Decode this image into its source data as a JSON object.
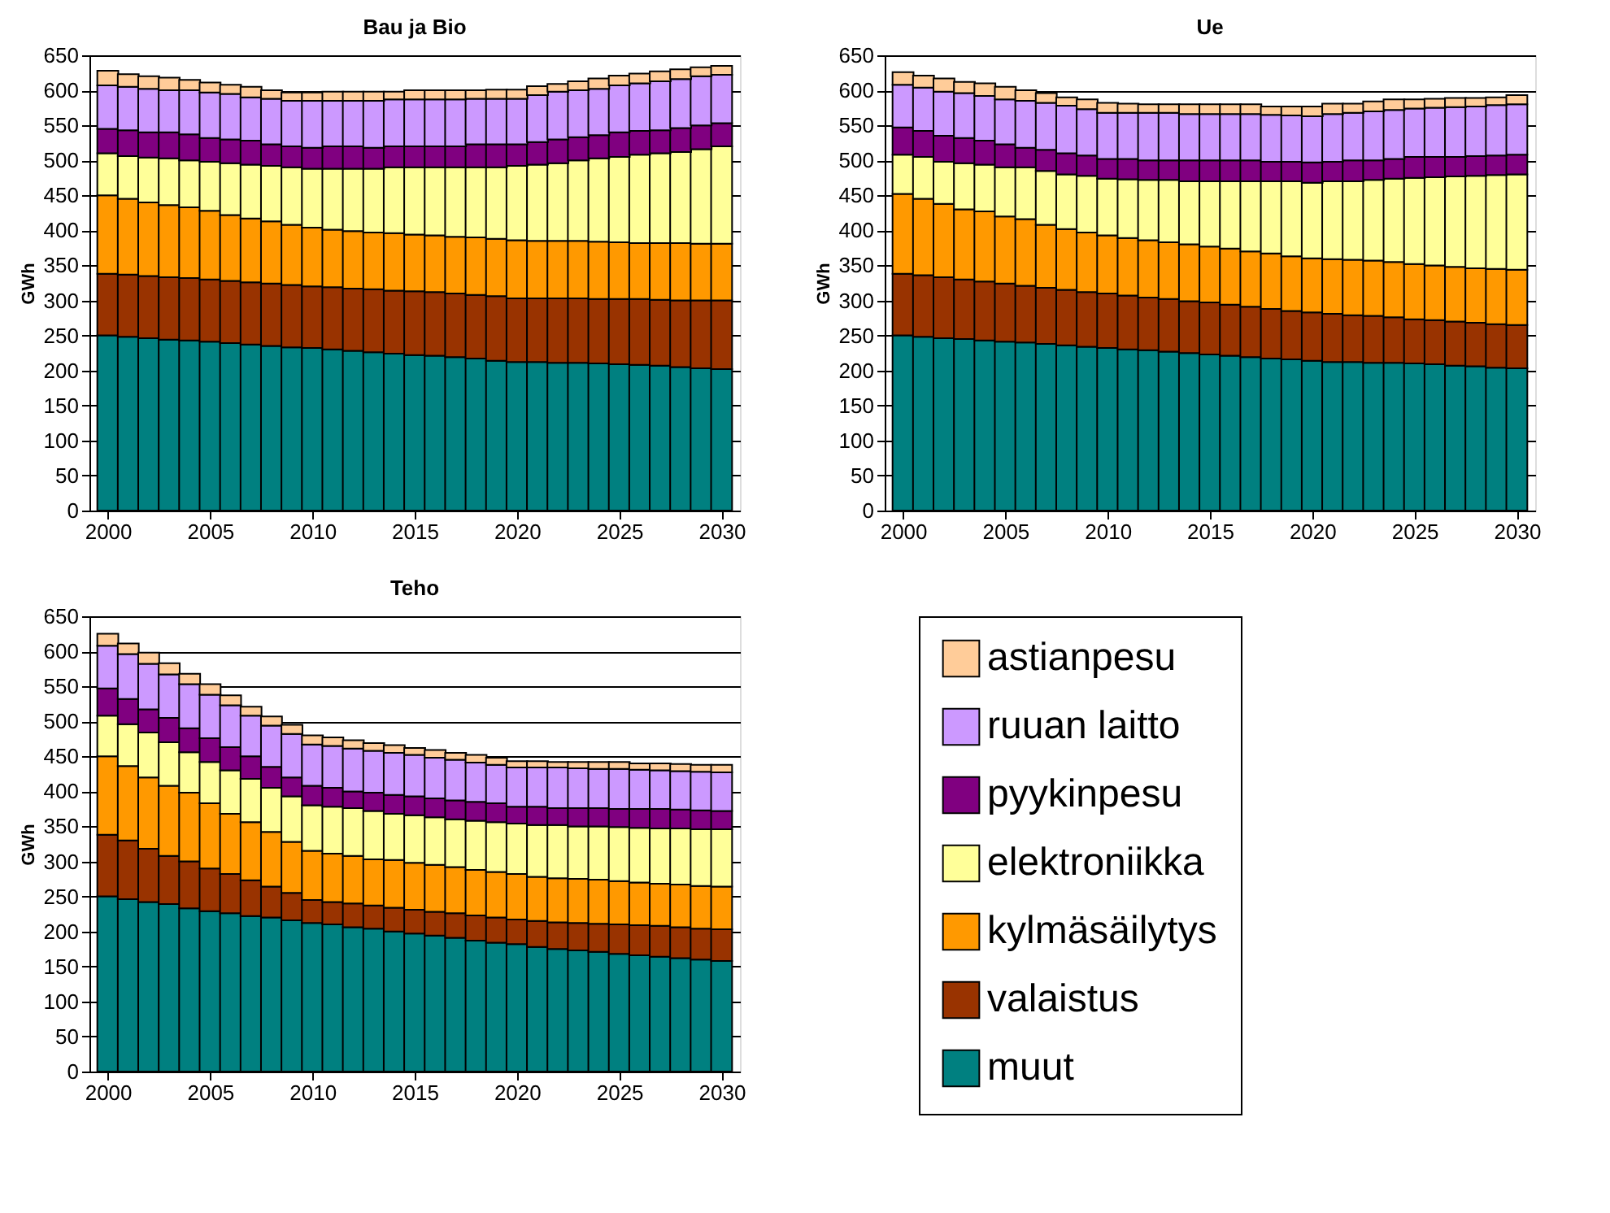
{
  "chart_data": [
    {
      "type": "bar",
      "title": "Bau ja Bio",
      "ylabel": "GWh",
      "stacked": true,
      "grid": "y",
      "legend": "bottom right",
      "x": [
        2000,
        2001,
        2002,
        2003,
        2004,
        2005,
        2006,
        2007,
        2008,
        2009,
        2010,
        2011,
        2012,
        2013,
        2014,
        2015,
        2016,
        2017,
        2018,
        2019,
        2020,
        2021,
        2022,
        2023,
        2024,
        2025,
        2026,
        2027,
        2028,
        2029,
        2030
      ],
      "xlim": [
        1999.5,
        2030.5
      ],
      "xticks": [
        2000,
        2005,
        2010,
        2015,
        2020,
        2025,
        2030
      ],
      "ylim": [
        0,
        650
      ],
      "yticks": [
        0,
        50,
        100,
        150,
        200,
        250,
        300,
        350,
        400,
        450,
        500,
        550,
        600,
        650
      ],
      "series": [
        {
          "name": "muut",
          "color": "#008080",
          "values": [
            250,
            248,
            246,
            244,
            243,
            241,
            239,
            237,
            235,
            233,
            232,
            230,
            228,
            226,
            224,
            222,
            221,
            219,
            217,
            214,
            212,
            212,
            211,
            211,
            210,
            209,
            208,
            207,
            205,
            203,
            202
          ]
        },
        {
          "name": "valaistus",
          "color": "#993300",
          "values": [
            88,
            89,
            89,
            89,
            89,
            89,
            89,
            89,
            89,
            89,
            88,
            89,
            89,
            90,
            90,
            91,
            91,
            91,
            91,
            92,
            91,
            91,
            92,
            92,
            92,
            93,
            94,
            94,
            95,
            97,
            98
          ]
        },
        {
          "name": "kylmäsäilytys",
          "color": "#ff9900",
          "values": [
            112,
            108,
            105,
            103,
            101,
            98,
            94,
            91,
            89,
            86,
            84,
            82,
            82,
            81,
            82,
            81,
            81,
            81,
            82,
            82,
            83,
            82,
            82,
            82,
            82,
            81,
            80,
            81,
            82,
            81,
            81
          ]
        },
        {
          "name": "elektroniikka",
          "color": "#ffff99",
          "values": [
            60,
            61,
            64,
            67,
            67,
            70,
            74,
            77,
            79,
            82,
            84,
            87,
            89,
            91,
            94,
            96,
            97,
            99,
            100,
            102,
            106,
            109,
            111,
            115,
            119,
            122,
            126,
            128,
            130,
            135,
            139
          ]
        },
        {
          "name": "pyykinpesu",
          "color": "#800080",
          "values": [
            35,
            37,
            36,
            37,
            37,
            34,
            34,
            34,
            31,
            30,
            30,
            32,
            32,
            30,
            30,
            30,
            30,
            30,
            33,
            33,
            31,
            32,
            34,
            33,
            33,
            35,
            34,
            33,
            34,
            34,
            33
          ]
        },
        {
          "name": "ruuan laitto",
          "color": "#cc99ff",
          "values": [
            62,
            62,
            62,
            60,
            63,
            65,
            65,
            62,
            65,
            65,
            67,
            65,
            65,
            67,
            67,
            67,
            67,
            67,
            65,
            65,
            65,
            67,
            68,
            67,
            66,
            67,
            68,
            70,
            70,
            70,
            69
          ]
        },
        {
          "name": "astianpesu",
          "color": "#ffcc99",
          "values": [
            21,
            18,
            18,
            18,
            15,
            14,
            13,
            15,
            12,
            12,
            12,
            13,
            13,
            13,
            11,
            13,
            13,
            13,
            12,
            13,
            13,
            13,
            11,
            13,
            15,
            14,
            14,
            14,
            14,
            13,
            13
          ]
        }
      ]
    },
    {
      "type": "bar",
      "title": "Ue",
      "ylabel": "GWh",
      "stacked": true,
      "grid": "y",
      "x": [
        2000,
        2001,
        2002,
        2003,
        2004,
        2005,
        2006,
        2007,
        2008,
        2009,
        2010,
        2011,
        2012,
        2013,
        2014,
        2015,
        2016,
        2017,
        2018,
        2019,
        2020,
        2021,
        2022,
        2023,
        2024,
        2025,
        2026,
        2027,
        2028,
        2029,
        2030
      ],
      "xlim": [
        1999.5,
        2030.5
      ],
      "xticks": [
        2000,
        2005,
        2010,
        2015,
        2020,
        2025,
        2030
      ],
      "ylim": [
        0,
        650
      ],
      "yticks": [
        0,
        50,
        100,
        150,
        200,
        250,
        300,
        350,
        400,
        450,
        500,
        550,
        600,
        650
      ],
      "series": [
        {
          "name": "muut",
          "color": "#008080",
          "values": [
            250,
            248,
            246,
            245,
            243,
            241,
            240,
            238,
            236,
            234,
            232,
            230,
            229,
            227,
            225,
            223,
            221,
            219,
            217,
            216,
            214,
            212,
            212,
            211,
            211,
            210,
            209,
            207,
            206,
            204,
            203
          ]
        },
        {
          "name": "valaistus",
          "color": "#993300",
          "values": [
            88,
            88,
            87,
            85,
            84,
            83,
            81,
            80,
            79,
            78,
            78,
            77,
            75,
            75,
            74,
            74,
            73,
            72,
            71,
            69,
            69,
            69,
            67,
            67,
            65,
            63,
            63,
            63,
            62,
            62,
            62
          ]
        },
        {
          "name": "kylmäsäilytys",
          "color": "#ff9900",
          "values": [
            114,
            109,
            105,
            100,
            100,
            96,
            95,
            90,
            87,
            85,
            83,
            82,
            82,
            81,
            81,
            80,
            80,
            79,
            79,
            78,
            77,
            78,
            79,
            79,
            79,
            79,
            78,
            78,
            78,
            79,
            79
          ]
        },
        {
          "name": "elektroniikka",
          "color": "#ffff99",
          "values": [
            56,
            60,
            60,
            66,
            67,
            70,
            74,
            77,
            78,
            81,
            81,
            84,
            86,
            89,
            90,
            93,
            96,
            100,
            103,
            107,
            108,
            111,
            112,
            115,
            119,
            123,
            126,
            129,
            132,
            134,
            136
          ]
        },
        {
          "name": "pyykinpesu",
          "color": "#800080",
          "values": [
            39,
            37,
            37,
            36,
            34,
            33,
            28,
            30,
            30,
            29,
            28,
            29,
            28,
            28,
            30,
            30,
            30,
            30,
            28,
            28,
            29,
            28,
            30,
            28,
            28,
            30,
            29,
            28,
            28,
            28,
            28
          ]
        },
        {
          "name": "ruuan laitto",
          "color": "#cc99ff",
          "values": [
            61,
            62,
            63,
            64,
            64,
            64,
            67,
            67,
            68,
            66,
            66,
            66,
            68,
            68,
            66,
            66,
            66,
            66,
            67,
            66,
            66,
            68,
            68,
            70,
            70,
            69,
            70,
            71,
            71,
            72,
            72
          ]
        },
        {
          "name": "astianpesu",
          "color": "#ffcc99",
          "values": [
            18,
            17,
            19,
            16,
            18,
            18,
            15,
            14,
            12,
            14,
            14,
            13,
            12,
            12,
            14,
            14,
            14,
            14,
            12,
            13,
            14,
            15,
            13,
            14,
            15,
            13,
            13,
            13,
            12,
            11,
            13
          ]
        }
      ]
    },
    {
      "type": "bar",
      "title": "Teho",
      "ylabel": "GWh",
      "stacked": true,
      "grid": "y",
      "x": [
        2000,
        2001,
        2002,
        2003,
        2004,
        2005,
        2006,
        2007,
        2008,
        2009,
        2010,
        2011,
        2012,
        2013,
        2014,
        2015,
        2016,
        2017,
        2018,
        2019,
        2020,
        2021,
        2022,
        2023,
        2024,
        2025,
        2026,
        2027,
        2028,
        2029,
        2030
      ],
      "xlim": [
        1999.5,
        2030.5
      ],
      "xticks": [
        2000,
        2005,
        2010,
        2015,
        2020,
        2025,
        2030
      ],
      "ylim": [
        0,
        650
      ],
      "yticks": [
        0,
        50,
        100,
        150,
        200,
        250,
        300,
        350,
        400,
        450,
        500,
        550,
        600,
        650
      ],
      "series": [
        {
          "name": "muut",
          "color": "#008080",
          "values": [
            250,
            246,
            242,
            239,
            233,
            229,
            226,
            222,
            220,
            216,
            212,
            210,
            206,
            204,
            200,
            197,
            194,
            191,
            187,
            184,
            182,
            178,
            175,
            173,
            171,
            168,
            166,
            164,
            162,
            160,
            158
          ]
        },
        {
          "name": "valaistus",
          "color": "#993300",
          "values": [
            88,
            84,
            76,
            69,
            67,
            61,
            56,
            51,
            44,
            39,
            33,
            32,
            34,
            33,
            34,
            34,
            34,
            35,
            36,
            36,
            35,
            37,
            38,
            39,
            40,
            42,
            43,
            44,
            44,
            44,
            45
          ]
        },
        {
          "name": "kylmäsäilytys",
          "color": "#ff9900",
          "values": [
            112,
            106,
            102,
            100,
            98,
            93,
            86,
            83,
            78,
            73,
            70,
            69,
            68,
            66,
            68,
            67,
            67,
            66,
            65,
            65,
            65,
            63,
            63,
            63,
            63,
            62,
            61,
            60,
            61,
            61,
            61
          ]
        },
        {
          "name": "elektroniikka",
          "color": "#ffff99",
          "values": [
            58,
            60,
            64,
            62,
            58,
            59,
            62,
            62,
            63,
            65,
            65,
            67,
            68,
            69,
            66,
            68,
            68,
            68,
            70,
            71,
            72,
            74,
            76,
            75,
            76,
            77,
            78,
            79,
            80,
            81,
            82
          ]
        },
        {
          "name": "pyykinpesu",
          "color": "#800080",
          "values": [
            39,
            36,
            33,
            35,
            34,
            34,
            33,
            32,
            30,
            27,
            28,
            27,
            24,
            26,
            27,
            27,
            27,
            27,
            27,
            27,
            24,
            26,
            24,
            26,
            26,
            26,
            27,
            28,
            27,
            27,
            26
          ]
        },
        {
          "name": "ruuan laitto",
          "color": "#cc99ff",
          "values": [
            61,
            64,
            65,
            62,
            63,
            62,
            60,
            58,
            59,
            62,
            59,
            60,
            61,
            60,
            60,
            59,
            58,
            58,
            56,
            55,
            56,
            56,
            58,
            57,
            56,
            57,
            56,
            55,
            55,
            55,
            55
          ]
        },
        {
          "name": "astianpesu",
          "color": "#ffcc99",
          "values": [
            17,
            15,
            16,
            16,
            15,
            15,
            14,
            13,
            13,
            13,
            13,
            12,
            12,
            11,
            11,
            10,
            11,
            10,
            11,
            10,
            9,
            9,
            8,
            9,
            10,
            10,
            9,
            10,
            10,
            10,
            11
          ]
        }
      ]
    }
  ]
}
